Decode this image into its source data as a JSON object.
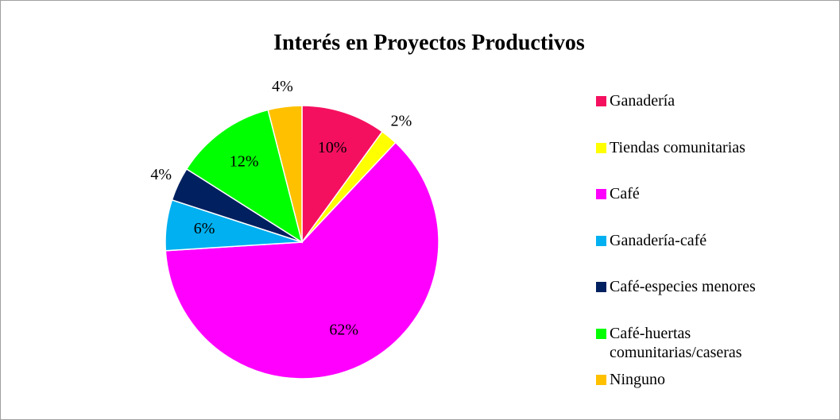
{
  "chart_data": {
    "type": "pie",
    "title": "Interés en Proyectos Productivos",
    "categories": [
      "Ganadería",
      "Tiendas comunitarias",
      "Café",
      "Ganadería-café",
      "Café-especies menores",
      "Café-huertas comunitarias/caseras",
      "Ninguno"
    ],
    "values": [
      10,
      2,
      62,
      6,
      4,
      12,
      4
    ],
    "value_labels": [
      "10%",
      "2%",
      "62%",
      "6%",
      "4%",
      "12%",
      "4%"
    ],
    "colors": [
      "#f5105f",
      "#ffff00",
      "#ff00ff",
      "#00b0f0",
      "#002060",
      "#00ff00",
      "#ffc000"
    ],
    "legend": "right"
  }
}
